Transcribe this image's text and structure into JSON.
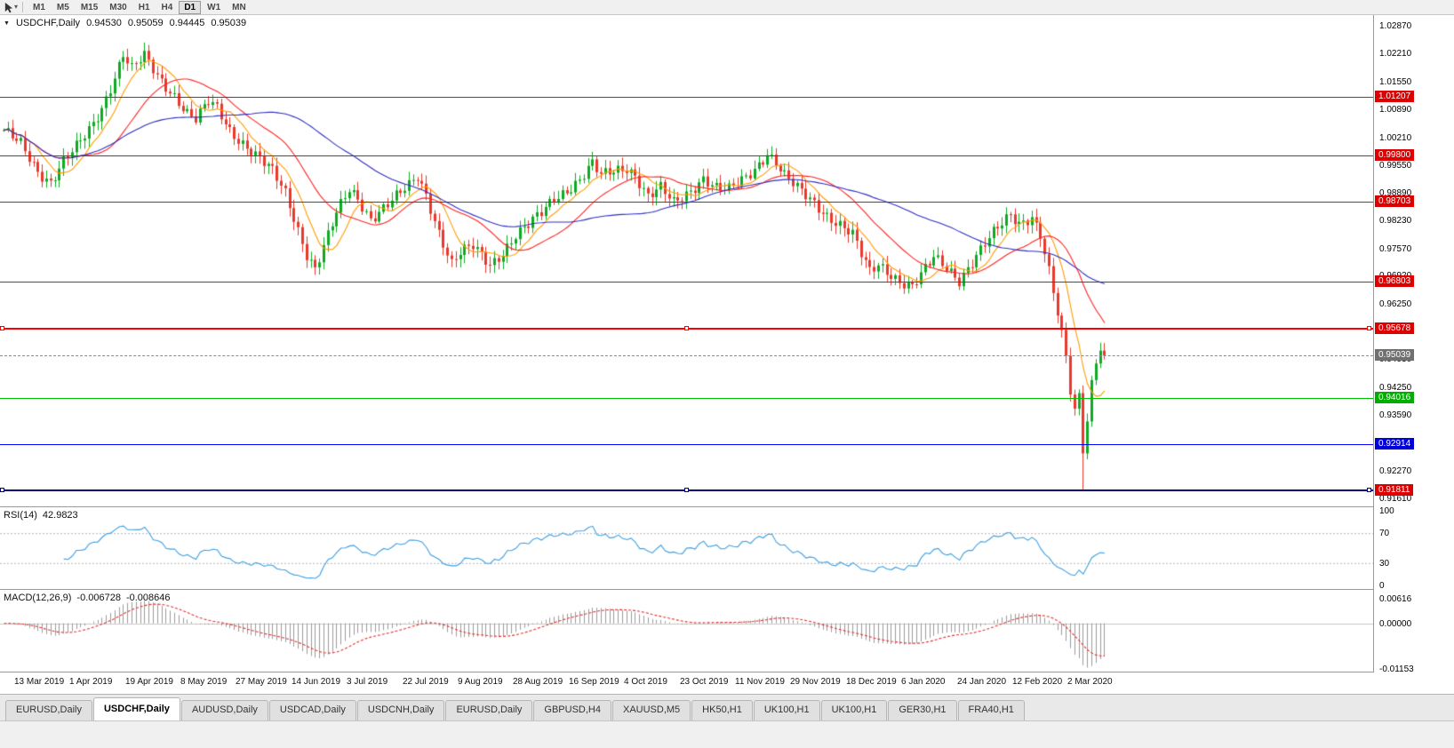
{
  "toolbar": {
    "timeframes": [
      "M1",
      "M5",
      "M15",
      "M30",
      "H1",
      "H4",
      "D1",
      "W1",
      "MN"
    ],
    "active_timeframe": "D1"
  },
  "chart": {
    "title": "USDCHF,Daily",
    "ohlc": {
      "open": "0.94530",
      "high": "0.95059",
      "low": "0.94445",
      "close": "0.95039"
    }
  },
  "price_axis": {
    "labels": [
      "1.02870",
      "1.02210",
      "1.01550",
      "1.00890",
      "1.00210",
      "0.99550",
      "0.98890",
      "0.98230",
      "0.97570",
      "0.96920",
      "0.96250",
      "0.95590",
      "0.94930",
      "0.94250",
      "0.93590",
      "0.92930",
      "0.92270",
      "0.91610"
    ],
    "current_price": {
      "label": "0.95039",
      "price": 0.95039
    }
  },
  "hlines": [
    {
      "id": "resistance-1",
      "label": "1.01207",
      "price": 1.01207,
      "line_color": "#ff0000",
      "tag_color": "#dd0000",
      "thickness": 1,
      "selected": false
    },
    {
      "id": "resistance-2",
      "label": "0.99800",
      "price": 0.998,
      "line_color": "#ff0000",
      "tag_color": "#dd0000",
      "thickness": 1,
      "selected": false
    },
    {
      "id": "resistance-3",
      "label": "0.98703",
      "price": 0.98703,
      "line_color": "#ff0000",
      "tag_color": "#dd0000",
      "thickness": 1,
      "selected": false
    },
    {
      "id": "resistance-4",
      "label": "0.96803",
      "price": 0.96803,
      "line_color": "#ff0000",
      "tag_color": "#dd0000",
      "thickness": 1,
      "selected": false
    },
    {
      "id": "resistance-5",
      "label": "0.95678",
      "price": 0.95678,
      "line_color": "#ff0000",
      "tag_color": "#dd0000",
      "thickness": 2,
      "selected": true
    },
    {
      "id": "support-green",
      "label": "0.94016",
      "price": 0.94016,
      "line_color": "#00c200",
      "tag_color": "#00ae00",
      "thickness": 1,
      "selected": false
    },
    {
      "id": "support-blue",
      "label": "0.92914",
      "price": 0.92914,
      "line_color": "#0000ff",
      "tag_color": "#0000dd",
      "thickness": 1,
      "selected": false
    },
    {
      "id": "support-navy",
      "label": "0.91811",
      "price": 0.91811,
      "line_color": "#000080",
      "tag_color": "#dd0000",
      "thickness": 2,
      "selected": true
    }
  ],
  "rsi_panel": {
    "label": "RSI(14)",
    "value": "42.9823",
    "axis_labels": [
      "100",
      "70",
      "30",
      "0"
    ]
  },
  "macd_panel": {
    "label": "MACD(12,26,9)",
    "values": [
      "-0.006728",
      "-0.008646"
    ],
    "axis_labels": [
      "0.00616",
      "0.00000",
      "-0.01153"
    ]
  },
  "date_axis": {
    "labels": [
      {
        "text": "13 Mar 2019",
        "bar": 6
      },
      {
        "text": "1 Apr 2019",
        "bar": 19
      },
      {
        "text": "19 Apr 2019",
        "bar": 32
      },
      {
        "text": "8 May 2019",
        "bar": 45
      },
      {
        "text": "27 May 2019",
        "bar": 58
      },
      {
        "text": "14 Jun 2019",
        "bar": 71
      },
      {
        "text": "3 Jul 2019",
        "bar": 84
      },
      {
        "text": "22 Jul 2019",
        "bar": 97
      },
      {
        "text": "9 Aug 2019",
        "bar": 110
      },
      {
        "text": "28 Aug 2019",
        "bar": 123
      },
      {
        "text": "16 Sep 2019",
        "bar": 136
      },
      {
        "text": "4 Oct 2019",
        "bar": 149
      },
      {
        "text": "23 Oct 2019",
        "bar": 162
      },
      {
        "text": "11 Nov 2019",
        "bar": 175
      },
      {
        "text": "29 Nov 2019",
        "bar": 188
      },
      {
        "text": "18 Dec 2019",
        "bar": 201
      },
      {
        "text": "6 Jan 2020",
        "bar": 214
      },
      {
        "text": "24 Jan 2020",
        "bar": 227
      },
      {
        "text": "12 Feb 2020",
        "bar": 240
      },
      {
        "text": "2 Mar 2020",
        "bar": 253
      }
    ]
  },
  "tabs": {
    "items": [
      "EURUSD,Daily",
      "USDCHF,Daily",
      "AUDUSD,Daily",
      "USDCAD,Daily",
      "USDCNH,Daily",
      "EURUSD,Daily",
      "GBPUSD,H4",
      "XAUUSD,M5",
      "HK50,H1",
      "UK100,H1",
      "UK100,H1",
      "GER30,H1",
      "FRA40,H1"
    ],
    "active_index": 1
  },
  "colors": {
    "candle_up": "#0faa23",
    "candle_down": "#e8392c",
    "ma_fast": "#ff9c00",
    "ma_mid": "#ff2222",
    "ma_slow": "#2f2fbf",
    "rsi_line": "#3d9fe0",
    "macd_hist": "#9b9b9b",
    "macd_signal": "#e03030",
    "bid_tag": "#707070",
    "level_red": "#ff0000"
  },
  "chart_data": {
    "type": "candlestick",
    "symbol": "USDCHF",
    "timeframe": "Daily",
    "bars": 259,
    "y_range": [
      0.9144,
      1.0315
    ],
    "last_close": 0.95039,
    "crash_bar": {
      "index": 253,
      "low": 0.9182
    },
    "anchor_path": [
      [
        0,
        1.0035
      ],
      [
        4,
        1.0008
      ],
      [
        8,
        0.9945
      ],
      [
        11,
        0.9918
      ],
      [
        14,
        0.9965
      ],
      [
        17,
        0.9998
      ],
      [
        20,
        1.004
      ],
      [
        23,
        1.0095
      ],
      [
        26,
        1.017
      ],
      [
        28,
        1.0222
      ],
      [
        30,
        1.0185
      ],
      [
        33,
        1.0215
      ],
      [
        36,
        1.017
      ],
      [
        40,
        1.0125
      ],
      [
        43,
        1.0082
      ],
      [
        45,
        1.0065
      ],
      [
        48,
        1.0105
      ],
      [
        50,
        1.0092
      ],
      [
        53,
        1.0042
      ],
      [
        56,
        1.0012
      ],
      [
        59,
        0.9982
      ],
      [
        63,
        0.994
      ],
      [
        66,
        0.989
      ],
      [
        69,
        0.9805
      ],
      [
        71,
        0.9748
      ],
      [
        73,
        0.9712
      ],
      [
        75,
        0.9762
      ],
      [
        78,
        0.984
      ],
      [
        81,
        0.9898
      ],
      [
        83,
        0.9878
      ],
      [
        86,
        0.9832
      ],
      [
        89,
        0.9856
      ],
      [
        92,
        0.988
      ],
      [
        95,
        0.9906
      ],
      [
        97,
        0.993
      ],
      [
        99,
        0.9888
      ],
      [
        102,
        0.98
      ],
      [
        105,
        0.9722
      ],
      [
        107,
        0.9746
      ],
      [
        110,
        0.9762
      ],
      [
        114,
        0.9722
      ],
      [
        117,
        0.9752
      ],
      [
        120,
        0.979
      ],
      [
        123,
        0.9812
      ],
      [
        126,
        0.9842
      ],
      [
        129,
        0.988
      ],
      [
        132,
        0.99
      ],
      [
        135,
        0.9922
      ],
      [
        138,
        0.9958
      ],
      [
        140,
        0.993
      ],
      [
        143,
        0.9944
      ],
      [
        146,
        0.9954
      ],
      [
        148,
        0.9936
      ],
      [
        151,
        0.9882
      ],
      [
        154,
        0.99
      ],
      [
        157,
        0.9866
      ],
      [
        160,
        0.989
      ],
      [
        164,
        0.9928
      ],
      [
        167,
        0.9902
      ],
      [
        170,
        0.9896
      ],
      [
        173,
        0.992
      ],
      [
        176,
        0.995
      ],
      [
        179,
        0.9988
      ],
      [
        181,
        0.9964
      ],
      [
        183,
        0.993
      ],
      [
        186,
        0.99
      ],
      [
        190,
        0.9868
      ],
      [
        193,
        0.984
      ],
      [
        196,
        0.9816
      ],
      [
        199,
        0.979
      ],
      [
        201,
        0.9742
      ],
      [
        203,
        0.9702
      ],
      [
        205,
        0.9722
      ],
      [
        208,
        0.97
      ],
      [
        210,
        0.9682
      ],
      [
        213,
        0.9666
      ],
      [
        216,
        0.9706
      ],
      [
        218,
        0.9736
      ],
      [
        221,
        0.9716
      ],
      [
        224,
        0.9686
      ],
      [
        227,
        0.9726
      ],
      [
        230,
        0.9766
      ],
      [
        233,
        0.9806
      ],
      [
        236,
        0.9842
      ],
      [
        238,
        0.9822
      ],
      [
        241,
        0.9836
      ],
      [
        243,
        0.979
      ],
      [
        245,
        0.97
      ],
      [
        247,
        0.96
      ],
      [
        249,
        0.9498
      ],
      [
        250,
        0.942
      ],
      [
        251,
        0.9372
      ],
      [
        252,
        0.9412
      ],
      [
        253,
        0.9287
      ],
      [
        254,
        0.9352
      ],
      [
        255,
        0.9442
      ],
      [
        256,
        0.9498
      ],
      [
        257,
        0.9522
      ],
      [
        258,
        0.9504
      ]
    ],
    "moving_averages": [
      {
        "period": 8,
        "color_key": "ma_fast"
      },
      {
        "period": 20,
        "color_key": "ma_mid"
      },
      {
        "period": 50,
        "color_key": "ma_slow"
      }
    ],
    "rsi": {
      "period": 14,
      "last": 42.9823,
      "levels": [
        70,
        30
      ]
    },
    "macd": {
      "fast": 12,
      "slow": 26,
      "signal": 9,
      "last": -0.006728,
      "last_signal": -0.008646,
      "axis_range": [
        -0.0121,
        0.0084
      ]
    }
  }
}
